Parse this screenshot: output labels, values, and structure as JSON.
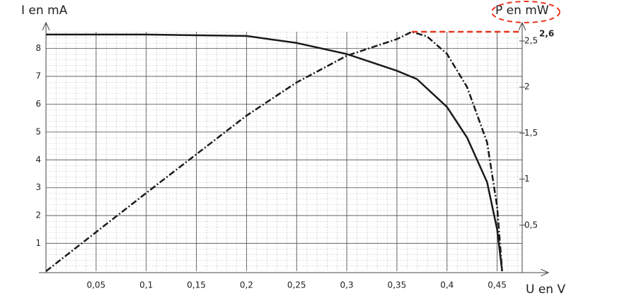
{
  "chart_data": {
    "type": "line",
    "x_label": "U en V",
    "y_label": "I en mA",
    "y2_label": "P en mW",
    "xlim": [
      0,
      0.475
    ],
    "ylim": [
      0,
      8.6
    ],
    "y2lim": [
      0,
      2.6
    ],
    "xticks": [
      {
        "value": 0.05,
        "label": "0,05"
      },
      {
        "value": 0.1,
        "label": "0,1"
      },
      {
        "value": 0.15,
        "label": "0,15"
      },
      {
        "value": 0.2,
        "label": "0,2"
      },
      {
        "value": 0.25,
        "label": "0,25"
      },
      {
        "value": 0.3,
        "label": "0,3"
      },
      {
        "value": 0.35,
        "label": "0,35"
      },
      {
        "value": 0.4,
        "label": "0,4"
      },
      {
        "value": 0.45,
        "label": "0,45"
      }
    ],
    "yticks": [
      1,
      2,
      3,
      4,
      5,
      6,
      7,
      8
    ],
    "y2ticks": [
      {
        "value": 0.5,
        "label": "0,5"
      },
      {
        "value": 1,
        "label": "1"
      },
      {
        "value": 1.5,
        "label": "1,5"
      },
      {
        "value": 2,
        "label": "2"
      },
      {
        "value": 2.5,
        "label": "2,5"
      }
    ],
    "grid": true,
    "series": [
      {
        "color": "#1a1a1a",
        "line_style": "solid",
        "x": [
          0,
          0.1,
          0.2,
          0.25,
          0.3,
          0.35,
          0.37,
          0.4,
          0.42,
          0.44,
          0.45,
          0.455
        ],
        "values": [
          8.5,
          8.5,
          8.45,
          8.2,
          7.8,
          7.2,
          6.9,
          5.9,
          4.8,
          3.2,
          1.5,
          0
        ]
      },
      {
        "color": "#1a1a1a",
        "line_style": "dashdot",
        "axis": "y2",
        "x": [
          0,
          0.05,
          0.1,
          0.15,
          0.2,
          0.25,
          0.3,
          0.35,
          0.365,
          0.38,
          0.4,
          0.42,
          0.44,
          0.45,
          0.455
        ],
        "values": [
          0,
          0.425,
          0.85,
          1.27,
          1.69,
          2.05,
          2.34,
          2.52,
          2.6,
          2.55,
          2.36,
          2.0,
          1.4,
          0.7,
          0
        ]
      }
    ],
    "annotation": {
      "text": "2,6",
      "x": 0.365,
      "y": 2.6,
      "color": "#e8341c"
    }
  }
}
